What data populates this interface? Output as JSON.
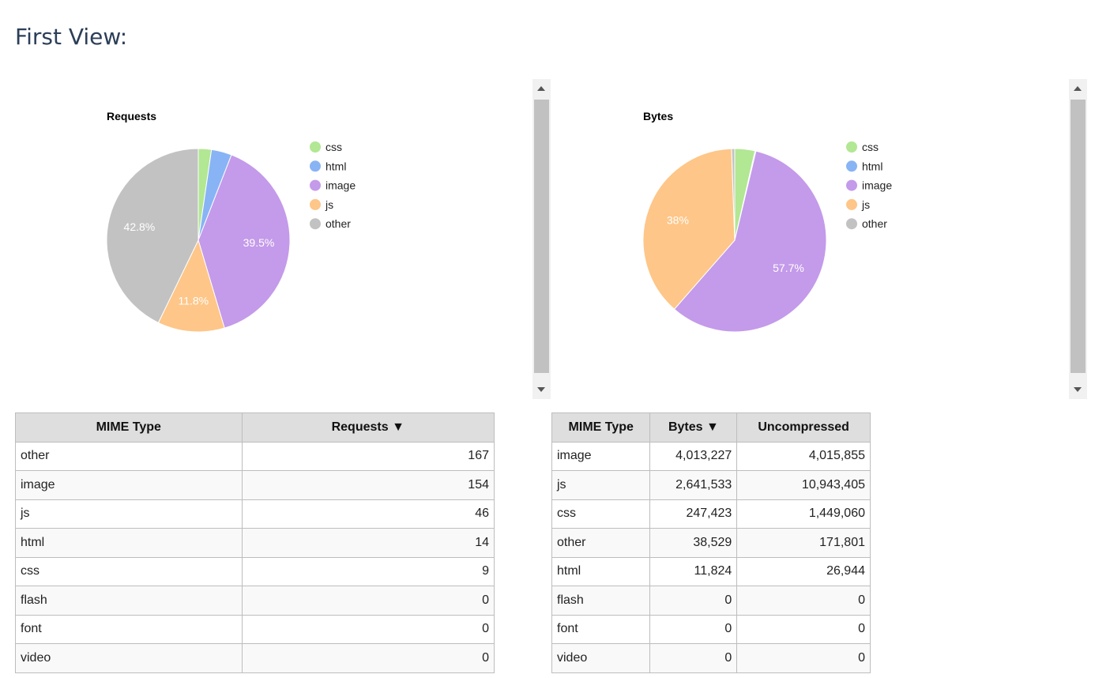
{
  "page": {
    "title": "First View:"
  },
  "chart_data": [
    {
      "type": "pie",
      "title": "Requests",
      "legend_position": "right",
      "categories": [
        "css",
        "html",
        "image",
        "js",
        "other"
      ],
      "values": [
        9,
        14,
        154,
        46,
        167
      ],
      "slice_labels": [
        "",
        "",
        "39.5%",
        "11.8%",
        "42.8%"
      ],
      "colors": [
        "#b2e793",
        "#88b4f5",
        "#c49aea",
        "#fec688",
        "#c2c2c2"
      ]
    },
    {
      "type": "pie",
      "title": "Bytes",
      "legend_position": "right",
      "categories": [
        "css",
        "html",
        "image",
        "js",
        "other"
      ],
      "values": [
        247423,
        11824,
        4013227,
        2641533,
        38529
      ],
      "slice_labels": [
        "",
        "",
        "57.7%",
        "38%",
        ""
      ],
      "colors": [
        "#b2e793",
        "#88b4f5",
        "#c49aea",
        "#fec688",
        "#c2c2c2"
      ]
    }
  ],
  "requests_table": {
    "headers": [
      "MIME Type",
      "Requests ▼"
    ],
    "rows": [
      [
        "other",
        "167"
      ],
      [
        "image",
        "154"
      ],
      [
        "js",
        "46"
      ],
      [
        "html",
        "14"
      ],
      [
        "css",
        "9"
      ],
      [
        "flash",
        "0"
      ],
      [
        "font",
        "0"
      ],
      [
        "video",
        "0"
      ]
    ]
  },
  "bytes_table": {
    "headers": [
      "MIME Type",
      "Bytes ▼",
      "Uncompressed"
    ],
    "rows": [
      [
        "image",
        "4,013,227",
        "4,015,855"
      ],
      [
        "js",
        "2,641,533",
        "10,943,405"
      ],
      [
        "css",
        "247,423",
        "1,449,060"
      ],
      [
        "other",
        "38,529",
        "171,801"
      ],
      [
        "html",
        "11,824",
        "26,944"
      ],
      [
        "flash",
        "0",
        "0"
      ],
      [
        "font",
        "0",
        "0"
      ],
      [
        "video",
        "0",
        "0"
      ]
    ]
  }
}
